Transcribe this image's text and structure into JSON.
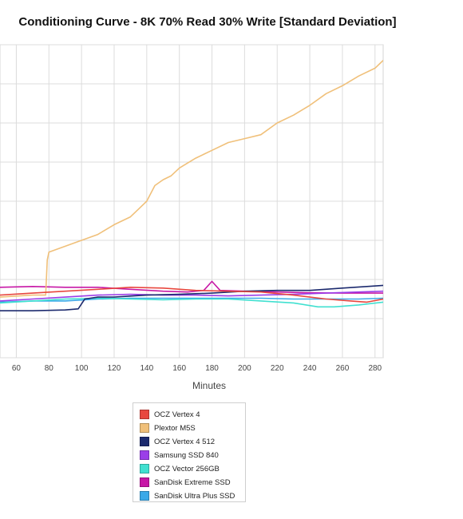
{
  "chart_data": {
    "type": "line",
    "title": "Conditioning Curve - 8K 70% Read 30% Write [Standard Deviation]",
    "xlabel": "Minutes",
    "ylabel": "",
    "x_ticks": [
      60,
      80,
      100,
      120,
      140,
      160,
      180,
      200,
      220,
      240,
      260,
      280
    ],
    "xlim": [
      50,
      285
    ],
    "ylim": [
      0,
      8
    ],
    "grid": true,
    "legend_position": "bottom",
    "series": [
      {
        "name": "OCZ Vertex 4",
        "color": "#e8473f",
        "points": [
          [
            50,
            1.6
          ],
          [
            70,
            1.65
          ],
          [
            90,
            1.7
          ],
          [
            110,
            1.75
          ],
          [
            130,
            1.8
          ],
          [
            150,
            1.78
          ],
          [
            170,
            1.72
          ],
          [
            190,
            1.7
          ],
          [
            210,
            1.68
          ],
          [
            230,
            1.6
          ],
          [
            250,
            1.5
          ],
          [
            265,
            1.45
          ],
          [
            275,
            1.42
          ],
          [
            285,
            1.5
          ]
        ]
      },
      {
        "name": "Plextor M5S",
        "color": "#f0c07a",
        "points": [
          [
            50,
            1.55
          ],
          [
            70,
            1.6
          ],
          [
            78,
            1.6
          ],
          [
            79,
            2.5
          ],
          [
            80,
            2.7
          ],
          [
            90,
            2.85
          ],
          [
            100,
            3.0
          ],
          [
            110,
            3.15
          ],
          [
            120,
            3.4
          ],
          [
            130,
            3.6
          ],
          [
            135,
            3.8
          ],
          [
            140,
            4.0
          ],
          [
            145,
            4.4
          ],
          [
            150,
            4.55
          ],
          [
            155,
            4.65
          ],
          [
            160,
            4.85
          ],
          [
            170,
            5.1
          ],
          [
            180,
            5.3
          ],
          [
            190,
            5.5
          ],
          [
            200,
            5.6
          ],
          [
            210,
            5.7
          ],
          [
            220,
            6.0
          ],
          [
            230,
            6.2
          ],
          [
            240,
            6.45
          ],
          [
            250,
            6.75
          ],
          [
            260,
            6.95
          ],
          [
            270,
            7.2
          ],
          [
            280,
            7.4
          ],
          [
            285,
            7.6
          ]
        ]
      },
      {
        "name": "OCZ Vertex 4 512",
        "color": "#1c2a6e",
        "points": [
          [
            50,
            1.2
          ],
          [
            70,
            1.2
          ],
          [
            90,
            1.22
          ],
          [
            98,
            1.25
          ],
          [
            102,
            1.5
          ],
          [
            110,
            1.55
          ],
          [
            120,
            1.55
          ],
          [
            140,
            1.6
          ],
          [
            160,
            1.62
          ],
          [
            180,
            1.65
          ],
          [
            200,
            1.7
          ],
          [
            220,
            1.72
          ],
          [
            240,
            1.72
          ],
          [
            260,
            1.78
          ],
          [
            275,
            1.82
          ],
          [
            285,
            1.85
          ]
        ]
      },
      {
        "name": "Samsung SSD 840",
        "color": "#9b3ee8",
        "points": [
          [
            50,
            1.45
          ],
          [
            70,
            1.5
          ],
          [
            90,
            1.55
          ],
          [
            110,
            1.6
          ],
          [
            130,
            1.62
          ],
          [
            150,
            1.6
          ],
          [
            170,
            1.6
          ],
          [
            190,
            1.58
          ],
          [
            210,
            1.6
          ],
          [
            230,
            1.62
          ],
          [
            250,
            1.65
          ],
          [
            270,
            1.68
          ],
          [
            285,
            1.7
          ]
        ]
      },
      {
        "name": "OCZ Vector 256GB",
        "color": "#40e0d0",
        "points": [
          [
            50,
            1.4
          ],
          [
            70,
            1.45
          ],
          [
            90,
            1.5
          ],
          [
            110,
            1.52
          ],
          [
            130,
            1.5
          ],
          [
            150,
            1.48
          ],
          [
            170,
            1.5
          ],
          [
            190,
            1.5
          ],
          [
            210,
            1.45
          ],
          [
            230,
            1.4
          ],
          [
            245,
            1.3
          ],
          [
            255,
            1.3
          ],
          [
            270,
            1.35
          ],
          [
            285,
            1.42
          ]
        ]
      },
      {
        "name": "SanDisk Extreme SSD",
        "color": "#c717a6",
        "points": [
          [
            50,
            1.8
          ],
          [
            70,
            1.82
          ],
          [
            90,
            1.8
          ],
          [
            110,
            1.8
          ],
          [
            130,
            1.75
          ],
          [
            150,
            1.7
          ],
          [
            165,
            1.68
          ],
          [
            175,
            1.72
          ],
          [
            180,
            1.95
          ],
          [
            185,
            1.72
          ],
          [
            200,
            1.7
          ],
          [
            220,
            1.68
          ],
          [
            240,
            1.66
          ],
          [
            260,
            1.65
          ],
          [
            285,
            1.65
          ]
        ]
      },
      {
        "name": "SanDisk Ultra Plus SSD",
        "color": "#3aa9e8",
        "points": [
          [
            50,
            1.42
          ],
          [
            70,
            1.45
          ],
          [
            90,
            1.45
          ],
          [
            110,
            1.5
          ],
          [
            130,
            1.52
          ],
          [
            150,
            1.52
          ],
          [
            170,
            1.52
          ],
          [
            190,
            1.52
          ],
          [
            210,
            1.52
          ],
          [
            230,
            1.5
          ],
          [
            250,
            1.5
          ],
          [
            270,
            1.5
          ],
          [
            285,
            1.52
          ]
        ]
      }
    ]
  }
}
